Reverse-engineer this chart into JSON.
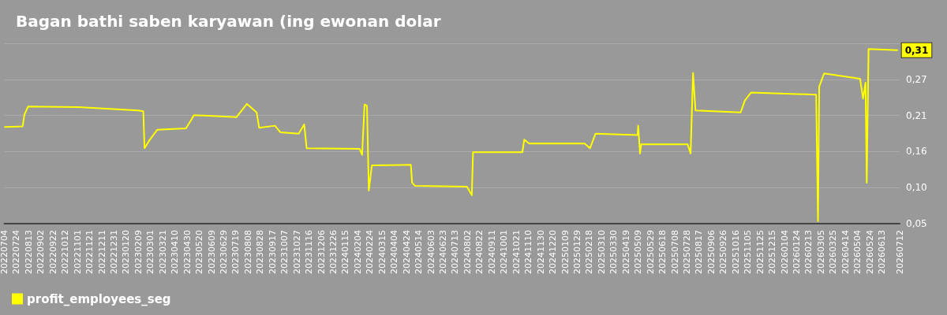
{
  "chart_data": {
    "type": "line",
    "title": "Bagan bathi saben karyawan (ing ewonan dolar",
    "x": [
      "2022-07-04",
      "2022-08-03",
      "2022-08-06",
      "2022-08-12",
      "2022-11-02",
      "2023-02-08",
      "2023-02-17",
      "2023-02-19",
      "2023-02-27",
      "2023-03-12",
      "2023-04-28",
      "2023-05-06",
      "2023-05-11",
      "2023-07-20",
      "2023-08-06",
      "2023-08-22",
      "2023-08-26",
      "2023-09-21",
      "2023-09-30",
      "2023-10-30",
      "2023-11-08",
      "2023-11-12",
      "2024-02-07",
      "2024-02-11",
      "2024-02-15",
      "2024-02-19",
      "2024-02-22",
      "2024-02-27",
      "2024-05-01",
      "2024-05-03",
      "2024-05-08",
      "2024-08-01",
      "2024-08-09",
      "2024-08-11",
      "2024-10-31",
      "2024-11-03",
      "2024-11-11",
      "2025-02-10",
      "2025-02-19",
      "2025-02-28",
      "2025-05-08",
      "2025-05-09",
      "2025-05-12",
      "2025-05-14",
      "2025-07-29",
      "2025-08-03",
      "2025-08-07",
      "2025-08-11",
      "2025-10-24",
      "2025-10-31",
      "2025-11-10",
      "2026-02-25",
      "2026-02-28",
      "2026-03-02",
      "2026-03-10",
      "2026-05-08",
      "2026-05-13",
      "2026-05-17",
      "2026-05-19",
      "2026-05-22",
      "2026-07-09"
    ],
    "series": [
      {
        "name": "profit_employees_seg",
        "color": "#ffff00",
        "values": [
          0.194,
          0.195,
          0.213,
          0.225,
          0.224,
          0.219,
          0.218,
          0.162,
          0.174,
          0.19,
          0.192,
          0.204,
          0.212,
          0.209,
          0.229,
          0.216,
          0.193,
          0.196,
          0.186,
          0.184,
          0.198,
          0.162,
          0.161,
          0.152,
          0.228,
          0.226,
          0.098,
          0.136,
          0.137,
          0.11,
          0.105,
          0.104,
          0.091,
          0.156,
          0.156,
          0.175,
          0.169,
          0.169,
          0.162,
          0.184,
          0.182,
          0.196,
          0.154,
          0.168,
          0.168,
          0.154,
          0.276,
          0.219,
          0.216,
          0.234,
          0.246,
          0.243,
          0.052,
          0.255,
          0.275,
          0.267,
          0.237,
          0.261,
          0.11,
          0.312,
          0.31
        ],
        "value_labels": [
          null,
          null,
          null,
          null,
          null,
          null,
          null,
          null,
          null,
          null,
          null,
          null,
          null,
          null,
          null,
          null,
          null,
          null,
          null,
          null,
          null,
          null,
          null,
          null,
          null,
          null,
          null,
          null,
          null,
          null,
          null,
          null,
          null,
          null,
          null,
          null,
          null,
          null,
          null,
          null,
          null,
          null,
          null,
          null,
          null,
          null,
          null,
          null,
          null,
          null,
          null,
          null,
          null,
          null,
          null,
          null,
          null,
          null,
          null,
          null,
          "0,31"
        ]
      }
    ],
    "xlim": [
      "2022-07-04",
      "2026-07-12"
    ],
    "xticks": [
      {
        "value": "2022-07-04",
        "label": "20220704"
      },
      {
        "value": "2022-07-24",
        "label": "20220724"
      },
      {
        "value": "2022-08-13",
        "label": "20220813"
      },
      {
        "value": "2022-09-02",
        "label": "20220902"
      },
      {
        "value": "2022-09-22",
        "label": "20220922"
      },
      {
        "value": "2022-10-12",
        "label": "20221012"
      },
      {
        "value": "2022-11-01",
        "label": "20221101"
      },
      {
        "value": "2022-11-21",
        "label": "20221121"
      },
      {
        "value": "2022-12-11",
        "label": "20221211"
      },
      {
        "value": "2022-12-31",
        "label": "20221231"
      },
      {
        "value": "2023-01-20",
        "label": "20230120"
      },
      {
        "value": "2023-02-09",
        "label": "20230209"
      },
      {
        "value": "2023-03-01",
        "label": "20230301"
      },
      {
        "value": "2023-03-21",
        "label": "20230321"
      },
      {
        "value": "2023-04-10",
        "label": "20230410"
      },
      {
        "value": "2023-04-30",
        "label": "20230430"
      },
      {
        "value": "2023-05-20",
        "label": "20230520"
      },
      {
        "value": "2023-06-09",
        "label": "20230609"
      },
      {
        "value": "2023-06-29",
        "label": "20230629"
      },
      {
        "value": "2023-07-19",
        "label": "20230719"
      },
      {
        "value": "2023-08-08",
        "label": "20230808"
      },
      {
        "value": "2023-08-28",
        "label": "20230828"
      },
      {
        "value": "2023-09-17",
        "label": "20230917"
      },
      {
        "value": "2023-10-07",
        "label": "20231007"
      },
      {
        "value": "2023-10-27",
        "label": "20231027"
      },
      {
        "value": "2023-11-16",
        "label": "20231116"
      },
      {
        "value": "2023-12-06",
        "label": "20231206"
      },
      {
        "value": "2023-12-26",
        "label": "20231226"
      },
      {
        "value": "2024-01-15",
        "label": "20240115"
      },
      {
        "value": "2024-02-04",
        "label": "20240204"
      },
      {
        "value": "2024-02-24",
        "label": "20240224"
      },
      {
        "value": "2024-03-15",
        "label": "20240315"
      },
      {
        "value": "2024-04-04",
        "label": "20240404"
      },
      {
        "value": "2024-04-24",
        "label": "20240424"
      },
      {
        "value": "2024-05-14",
        "label": "20240514"
      },
      {
        "value": "2024-06-03",
        "label": "20240603"
      },
      {
        "value": "2024-06-23",
        "label": "20240623"
      },
      {
        "value": "2024-07-13",
        "label": "20240713"
      },
      {
        "value": "2024-08-02",
        "label": "20240802"
      },
      {
        "value": "2024-08-22",
        "label": "20240822"
      },
      {
        "value": "2024-09-11",
        "label": "20240911"
      },
      {
        "value": "2024-10-01",
        "label": "20241001"
      },
      {
        "value": "2024-10-21",
        "label": "20241021"
      },
      {
        "value": "2024-11-10",
        "label": "20241110"
      },
      {
        "value": "2024-11-30",
        "label": "20241130"
      },
      {
        "value": "2024-12-20",
        "label": "20241220"
      },
      {
        "value": "2025-01-09",
        "label": "20250109"
      },
      {
        "value": "2025-01-29",
        "label": "20250129"
      },
      {
        "value": "2025-02-18",
        "label": "20250218"
      },
      {
        "value": "2025-03-10",
        "label": "20250310"
      },
      {
        "value": "2025-03-30",
        "label": "20250330"
      },
      {
        "value": "2025-04-19",
        "label": "20250419"
      },
      {
        "value": "2025-05-09",
        "label": "20250509"
      },
      {
        "value": "2025-05-29",
        "label": "20250529"
      },
      {
        "value": "2025-06-18",
        "label": "20250618"
      },
      {
        "value": "2025-07-08",
        "label": "20250708"
      },
      {
        "value": "2025-07-28",
        "label": "20250728"
      },
      {
        "value": "2025-08-17",
        "label": "20250817"
      },
      {
        "value": "2025-09-06",
        "label": "20250906"
      },
      {
        "value": "2025-09-26",
        "label": "20250926"
      },
      {
        "value": "2025-10-16",
        "label": "20251016"
      },
      {
        "value": "2025-11-05",
        "label": "20251105"
      },
      {
        "value": "2025-11-25",
        "label": "20251125"
      },
      {
        "value": "2025-12-15",
        "label": "20251215"
      },
      {
        "value": "2026-01-04",
        "label": "20260104"
      },
      {
        "value": "2026-01-24",
        "label": "20260124"
      },
      {
        "value": "2026-02-13",
        "label": "20260213"
      },
      {
        "value": "2026-03-05",
        "label": "20260305"
      },
      {
        "value": "2026-03-25",
        "label": "20260325"
      },
      {
        "value": "2026-04-14",
        "label": "20260414"
      },
      {
        "value": "2026-05-04",
        "label": "20260504"
      },
      {
        "value": "2026-05-24",
        "label": "20260524"
      },
      {
        "value": "2026-06-13",
        "label": "20260613"
      },
      {
        "value": "2026-07-12",
        "label": "20260712"
      }
    ],
    "ylim": [
      0.048,
      0.3205
    ],
    "yticks": [
      {
        "value": 0.048,
        "label": "0,05"
      },
      {
        "value": 0.1025,
        "label": "0,10"
      },
      {
        "value": 0.157,
        "label": "0,16"
      },
      {
        "value": 0.2115,
        "label": "0,21"
      },
      {
        "value": 0.266,
        "label": "0,27"
      },
      {
        "value": 0.3205,
        "label": null
      }
    ],
    "grid": "y",
    "legend": "bottom left",
    "marker": "none",
    "line_style": "solid"
  }
}
